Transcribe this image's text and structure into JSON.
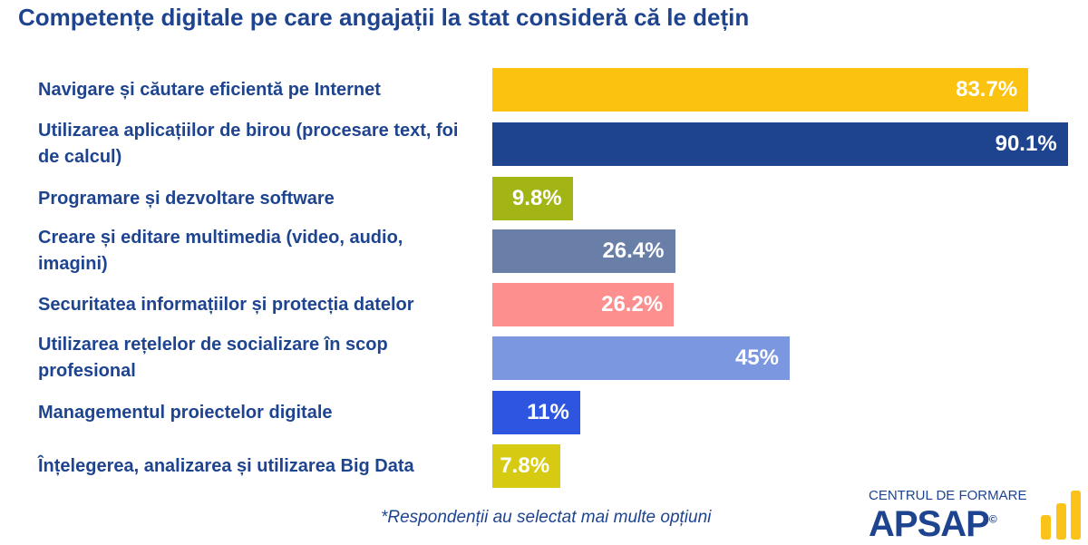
{
  "chart_data": {
    "type": "bar",
    "orientation": "horizontal",
    "title": "Competențe digitale pe care angajații la stat consideră că le dețin",
    "categories": [
      "Navigare și căutare eficientă pe Internet",
      "Utilizarea aplicațiilor de birou (procesare text, foi de calcul)",
      "Programare și dezvoltare software",
      "Creare și editare multimedia (video, audio, imagini)",
      "Securitatea informațiilor și protecția datelor",
      "Utilizarea rețelelor de socializare în scop profesional",
      "Managementul proiectelor digitale",
      "Înțelegerea, analizarea și utilizarea Big Data"
    ],
    "values": [
      83.7,
      90.1,
      9.8,
      26.4,
      26.2,
      45,
      11,
      7.8
    ],
    "data_labels": [
      "83.7%",
      "90.1%",
      "9.8%",
      "26.4%",
      "26.2%",
      "45%",
      "11%",
      "7.8%"
    ],
    "colors": [
      "#fbc210",
      "#1e4490",
      "#a3b515",
      "#6a7fa8",
      "#fd8f8f",
      "#7b97df",
      "#2d55e0",
      "#d6cb12"
    ],
    "grid": false,
    "xlabel": "",
    "ylabel": ""
  },
  "note": "*Respondenții au selectat mai multe opțiuni",
  "logo": {
    "top": "CENTRUL DE FORMARE",
    "name": "APSAP",
    "mark": "©"
  }
}
